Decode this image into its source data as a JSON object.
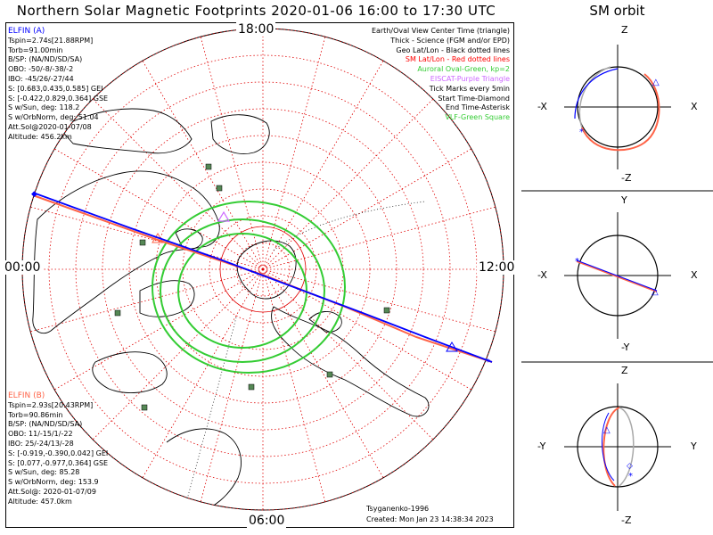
{
  "title": "Northern Solar Magnetic Footprints 2020-01-06 16:00 to 17:30 UTC",
  "sm_orbit_title": "SM orbit",
  "hour_labels": {
    "top": "18:00",
    "left": "00:00",
    "right": "12:00",
    "bottom": "06:00"
  },
  "elfin_a": {
    "name": "ELFIN (A)",
    "color": "#0000ff",
    "lines": [
      "Tspin=2.74s[21.88RPM]",
      "Torb=91.00min",
      "B/SP: (NA/ND/SD/SA)",
      "OBO: -50/-8/-38/-2",
      "IBO: -45/26/-27/44",
      "S: [0.683,0.435,0.585] GEI",
      "S: [-0.422,0.829,0.364] GSE",
      "S w/Sun, deg: 118.2",
      "S w/OrbNorm, deg: 51.04",
      "Att.Sol@2020-01-07/08",
      "Altitude: 456.2km"
    ]
  },
  "elfin_b": {
    "name": "ELFIN (B)",
    "color": "#ff6347",
    "lines": [
      "Tspin=2.93s[20.43RPM]",
      "Torb=90.86min",
      "B/SP: (NA/ND/SD/SA)",
      "OBO: 11/-15/1/-22",
      "IBO: 25/-24/13/-28",
      "S: [-0.919,-0.390,0.042] GEI",
      "S: [0.077,-0.977,0.364] GSE",
      "S w/Sun, deg: 85.28",
      "S w/OrbNorm, deg: 153.9",
      "Att.Sol@: 2020-01-07/09",
      "Altitude: 457.0km"
    ]
  },
  "legend": [
    {
      "text": "Earth/Oval View Center Time (triangle)",
      "color": "#000000"
    },
    {
      "text": "Thick - Science (FGM and/or EPD)",
      "color": "#000000"
    },
    {
      "text": "Geo Lat/Lon - Black dotted lines",
      "color": "#000000"
    },
    {
      "text": "SM Lat/Lon - Red dotted lines",
      "color": "#ff0000"
    },
    {
      "text": "Auroral Oval-Green, kp=2",
      "color": "#33cc33"
    },
    {
      "text": "EISCAT-Purple Triangle",
      "color": "#cc66ff"
    },
    {
      "text": "Tick Marks every 5min",
      "color": "#000000"
    },
    {
      "text": "Start Time-Diamond",
      "color": "#000000"
    },
    {
      "text": "End Time-Asterisk",
      "color": "#000000"
    },
    {
      "text": "VLF-Green Square",
      "color": "#33cc33"
    }
  ],
  "credit": "Tsyganenko-1996",
  "created": "Created: Mon Jan 23 14:38:34 2023",
  "orbit_panels": [
    {
      "top": "Z",
      "bottom": "-Z",
      "left": "-X",
      "right": "X"
    },
    {
      "top": "Y",
      "bottom": "-Y",
      "left": "-X",
      "right": "X"
    },
    {
      "top": "Z",
      "bottom": "-Z",
      "left": "-Y",
      "right": "Y"
    }
  ]
}
